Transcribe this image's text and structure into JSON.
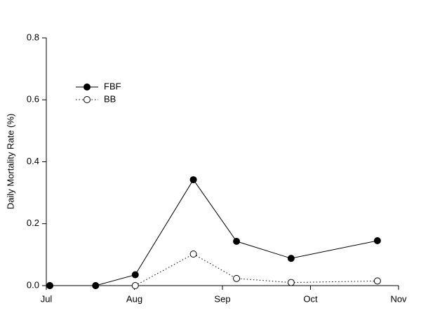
{
  "chart_data": {
    "type": "line",
    "y_label": "Daily Mortality Rate (%)",
    "xlim": [
      0,
      4
    ],
    "xticks": [
      {
        "value": 0,
        "label": "Jul"
      },
      {
        "value": 1,
        "label": "Aug"
      },
      {
        "value": 2,
        "label": "Sep"
      },
      {
        "value": 3,
        "label": "Oct"
      },
      {
        "value": 4,
        "label": "Nov"
      }
    ],
    "ylim": [
      0,
      0.8
    ],
    "yticks": [
      {
        "value": 0,
        "label": "0.0"
      },
      0.2,
      0.4,
      0.6,
      0.8
    ],
    "x": [
      0.04,
      0.56,
      1.01,
      1.67,
      2.16,
      2.78,
      3.76
    ],
    "legend": "upper-left",
    "series": [
      {
        "name": "FBF",
        "color": "#000000",
        "marker": "filled",
        "dash": "solid",
        "values": [
          0,
          0,
          0.035,
          0.342,
          0.143,
          0.088,
          0.145
        ]
      },
      {
        "name": "BB",
        "color": "#000000",
        "marker": "open",
        "dash": "dotted",
        "values": [
          0,
          0,
          0,
          0.102,
          0.023,
          0.01,
          0.015
        ]
      }
    ]
  }
}
